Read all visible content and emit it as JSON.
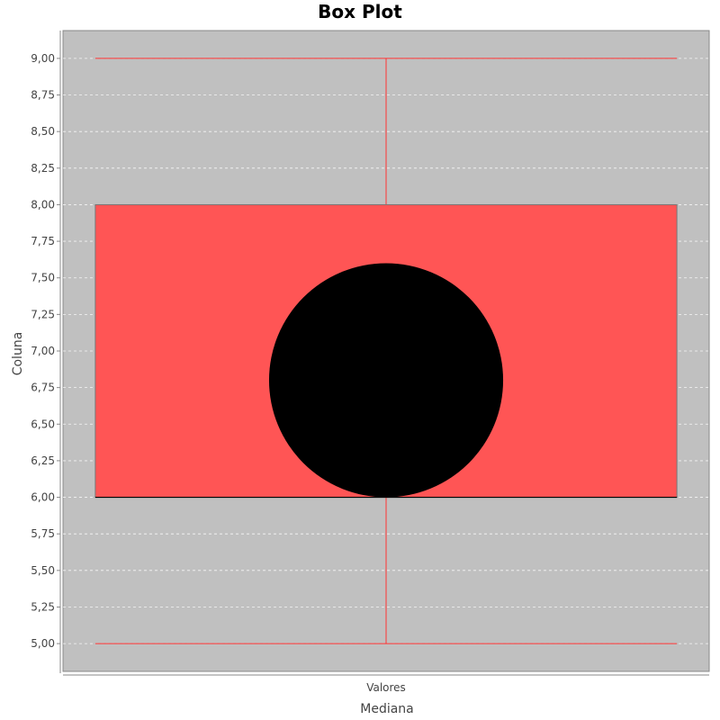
{
  "chart_data": {
    "type": "box",
    "title": "Box Plot",
    "xlabel": "Mediana",
    "ylabel": "Coluna",
    "categories": [
      "Valores"
    ],
    "ylim": [
      4.81,
      9.19
    ],
    "y_ticks": [
      {
        "value": 5.0,
        "label": "5,00"
      },
      {
        "value": 5.25,
        "label": "5,25"
      },
      {
        "value": 5.5,
        "label": "5,50"
      },
      {
        "value": 5.75,
        "label": "5,75"
      },
      {
        "value": 6.0,
        "label": "6,00"
      },
      {
        "value": 6.25,
        "label": "6,25"
      },
      {
        "value": 6.5,
        "label": "6,50"
      },
      {
        "value": 6.75,
        "label": "6,75"
      },
      {
        "value": 7.0,
        "label": "7,00"
      },
      {
        "value": 7.25,
        "label": "7,25"
      },
      {
        "value": 7.5,
        "label": "7,50"
      },
      {
        "value": 7.75,
        "label": "7,75"
      },
      {
        "value": 8.0,
        "label": "8,00"
      },
      {
        "value": 8.25,
        "label": "8,25"
      },
      {
        "value": 8.5,
        "label": "8,50"
      },
      {
        "value": 8.75,
        "label": "8,75"
      },
      {
        "value": 9.0,
        "label": "9,00"
      }
    ],
    "boxes": [
      {
        "category": "Valores",
        "min": 5.0,
        "q1": 6.0,
        "median": 6.0,
        "q3": 8.0,
        "max": 9.0,
        "mean": 6.8
      }
    ],
    "grid": true,
    "legend": "none",
    "colors": {
      "plot_background": "#c0c0c0",
      "box_fill": "#ff5555",
      "whisker": "#ff3333",
      "median": "#000000",
      "mean_marker": "#000000",
      "gridline": "#ffffff"
    }
  }
}
